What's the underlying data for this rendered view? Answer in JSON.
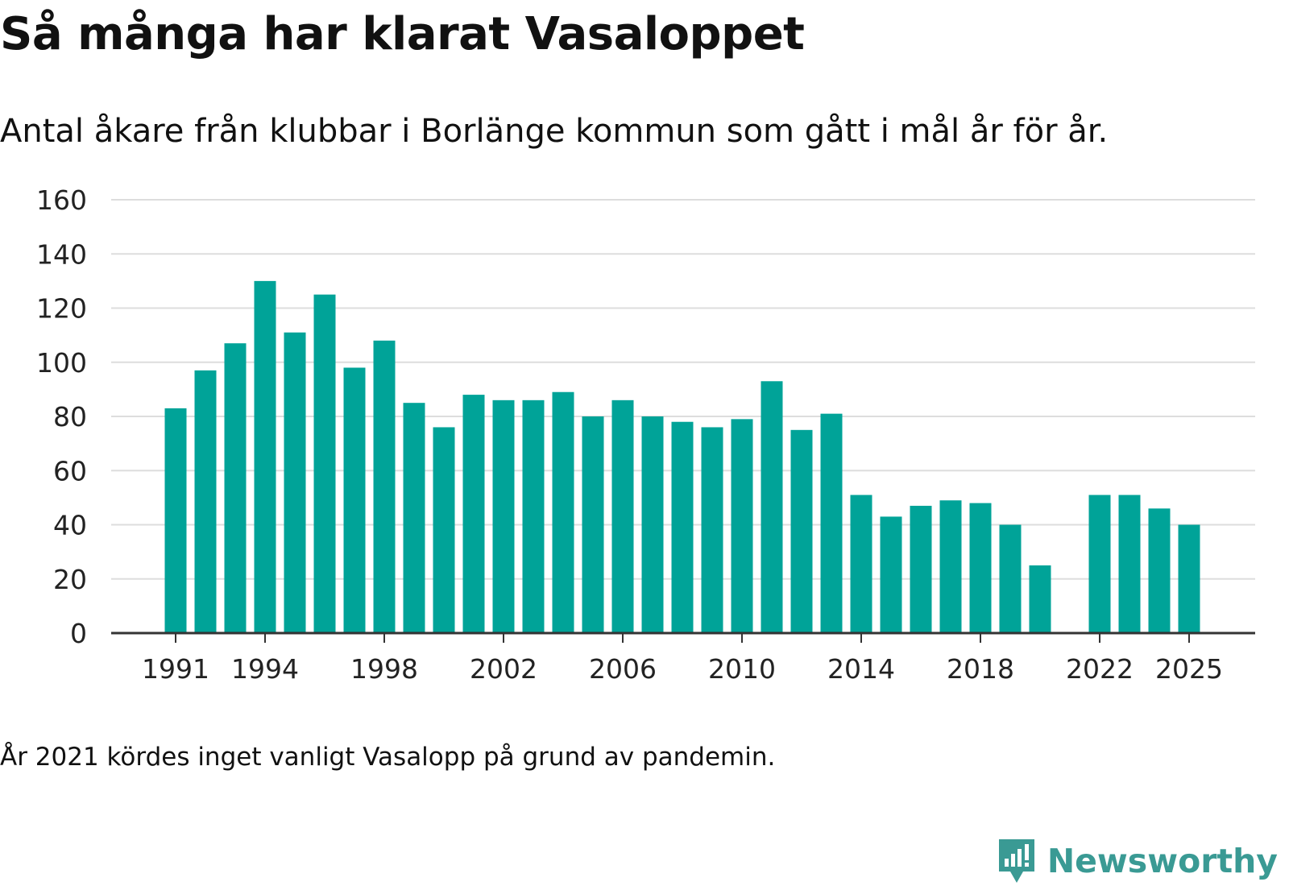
{
  "title": "Så många har klarat Vasaloppet",
  "subtitle": "Antal åkare från klubbar i Borlänge kommun som gått i mål år för år.",
  "note": "År 2021 kördes inget vanligt Vasalopp på grund av pandemin.",
  "brand": {
    "name": "Newsworthy",
    "icon": "newsworthy-logo-icon"
  },
  "colors": {
    "bar": "#00a398",
    "grid": "#dddddd",
    "axis": "#333333",
    "text": "#222222",
    "brand": "#3a9a94"
  },
  "chart_data": {
    "type": "bar",
    "title": "Så många har klarat Vasaloppet",
    "xlabel": "",
    "ylabel": "",
    "ylim": [
      0,
      160
    ],
    "yticks": [
      0,
      20,
      40,
      60,
      80,
      100,
      120,
      140,
      160
    ],
    "xticks": [
      1991,
      1994,
      1998,
      2002,
      2006,
      2010,
      2014,
      2018,
      2022,
      2025
    ],
    "grid": true,
    "categories": [
      1991,
      1992,
      1993,
      1994,
      1995,
      1996,
      1997,
      1998,
      1999,
      2000,
      2001,
      2002,
      2003,
      2004,
      2005,
      2006,
      2007,
      2008,
      2009,
      2010,
      2011,
      2012,
      2013,
      2014,
      2015,
      2016,
      2017,
      2018,
      2019,
      2020,
      2021,
      2022,
      2023,
      2024,
      2025
    ],
    "values": [
      83,
      97,
      107,
      130,
      111,
      125,
      98,
      108,
      85,
      76,
      88,
      86,
      86,
      89,
      80,
      86,
      80,
      78,
      76,
      79,
      93,
      75,
      81,
      51,
      43,
      47,
      49,
      48,
      40,
      25,
      null,
      51,
      51,
      46,
      40
    ]
  }
}
